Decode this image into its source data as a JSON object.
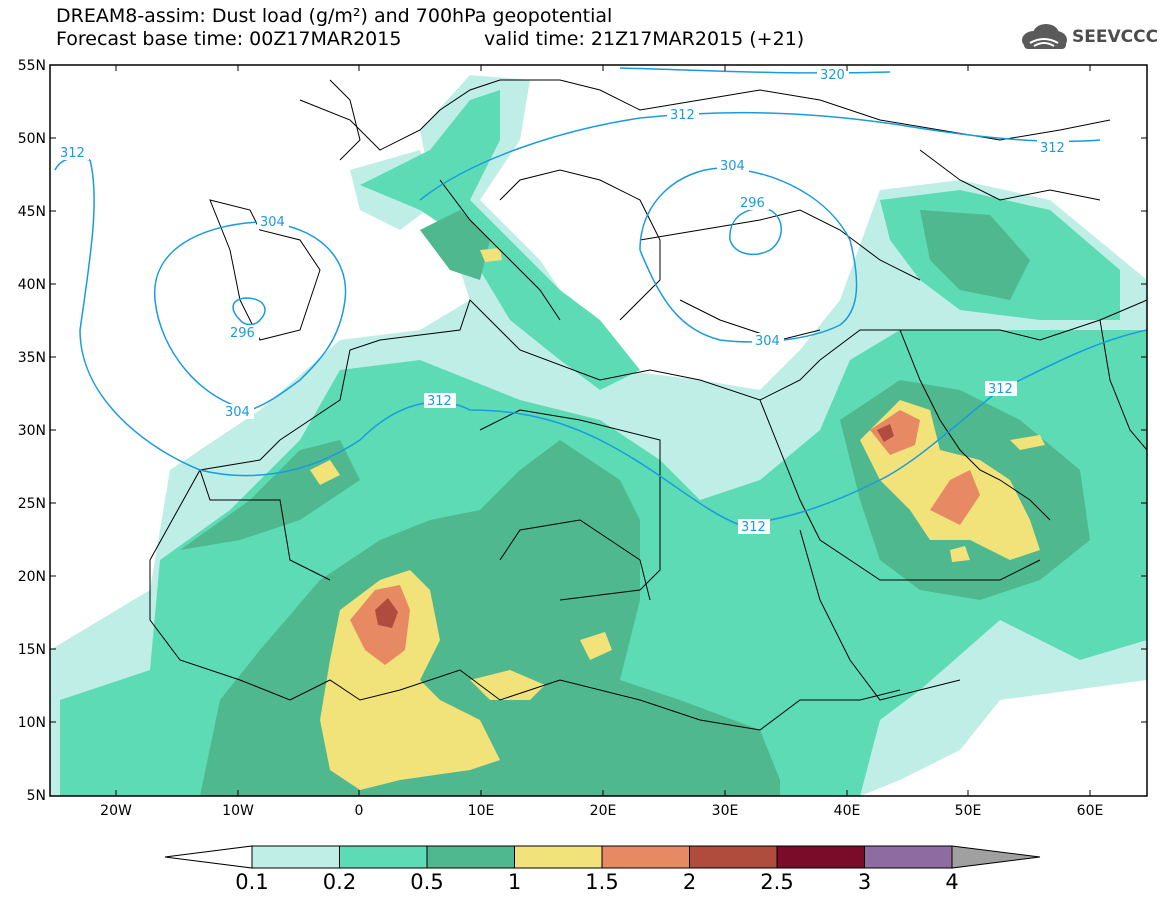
{
  "header": {
    "title_line1": "DREAM8-assim: Dust load (g/m²) and 700hPa geopotential",
    "title_line2": "Forecast base time: 00Z17MAR2015",
    "valid_time": "valid time: 21Z17MAR2015 (+21)",
    "logo_text": "SEEVCCC"
  },
  "map": {
    "lat_labels": [
      "55N",
      "50N",
      "45N",
      "40N",
      "35N",
      "30N",
      "25N",
      "20N",
      "15N",
      "10N",
      "5N"
    ],
    "lon_labels": [
      "20W",
      "10W",
      "0",
      "10E",
      "20E",
      "30E",
      "40E",
      "50E",
      "60E"
    ],
    "geopotential_contour_labels": [
      "320",
      "312",
      "312",
      "312",
      "304",
      "296",
      "304",
      "296",
      "304",
      "304",
      "312",
      "312",
      "312"
    ],
    "colors": {
      "contour": "#1a9ae0",
      "dust_0_1": "#bfeee6",
      "dust_0_2": "#5ddbb5",
      "dust_0_5": "#4fb88e",
      "dust_1": "#f2e27a",
      "dust_1_5": "#e78a63",
      "dust_2": "#b04c3e",
      "dust_2_5": "#7a0c2a",
      "dust_3": "#8e6ba0",
      "dust_4": "#a0a0a0"
    }
  },
  "colorbar": {
    "ticks": [
      "0.1",
      "0.2",
      "0.5",
      "1",
      "1.5",
      "2",
      "2.5",
      "3",
      "4"
    ],
    "fills": [
      "#bfeee6",
      "#5ddbb5",
      "#4fb88e",
      "#f2e27a",
      "#e78a63",
      "#b04c3e",
      "#7a0c2a",
      "#8e6ba0",
      "#a0a0a0"
    ]
  }
}
